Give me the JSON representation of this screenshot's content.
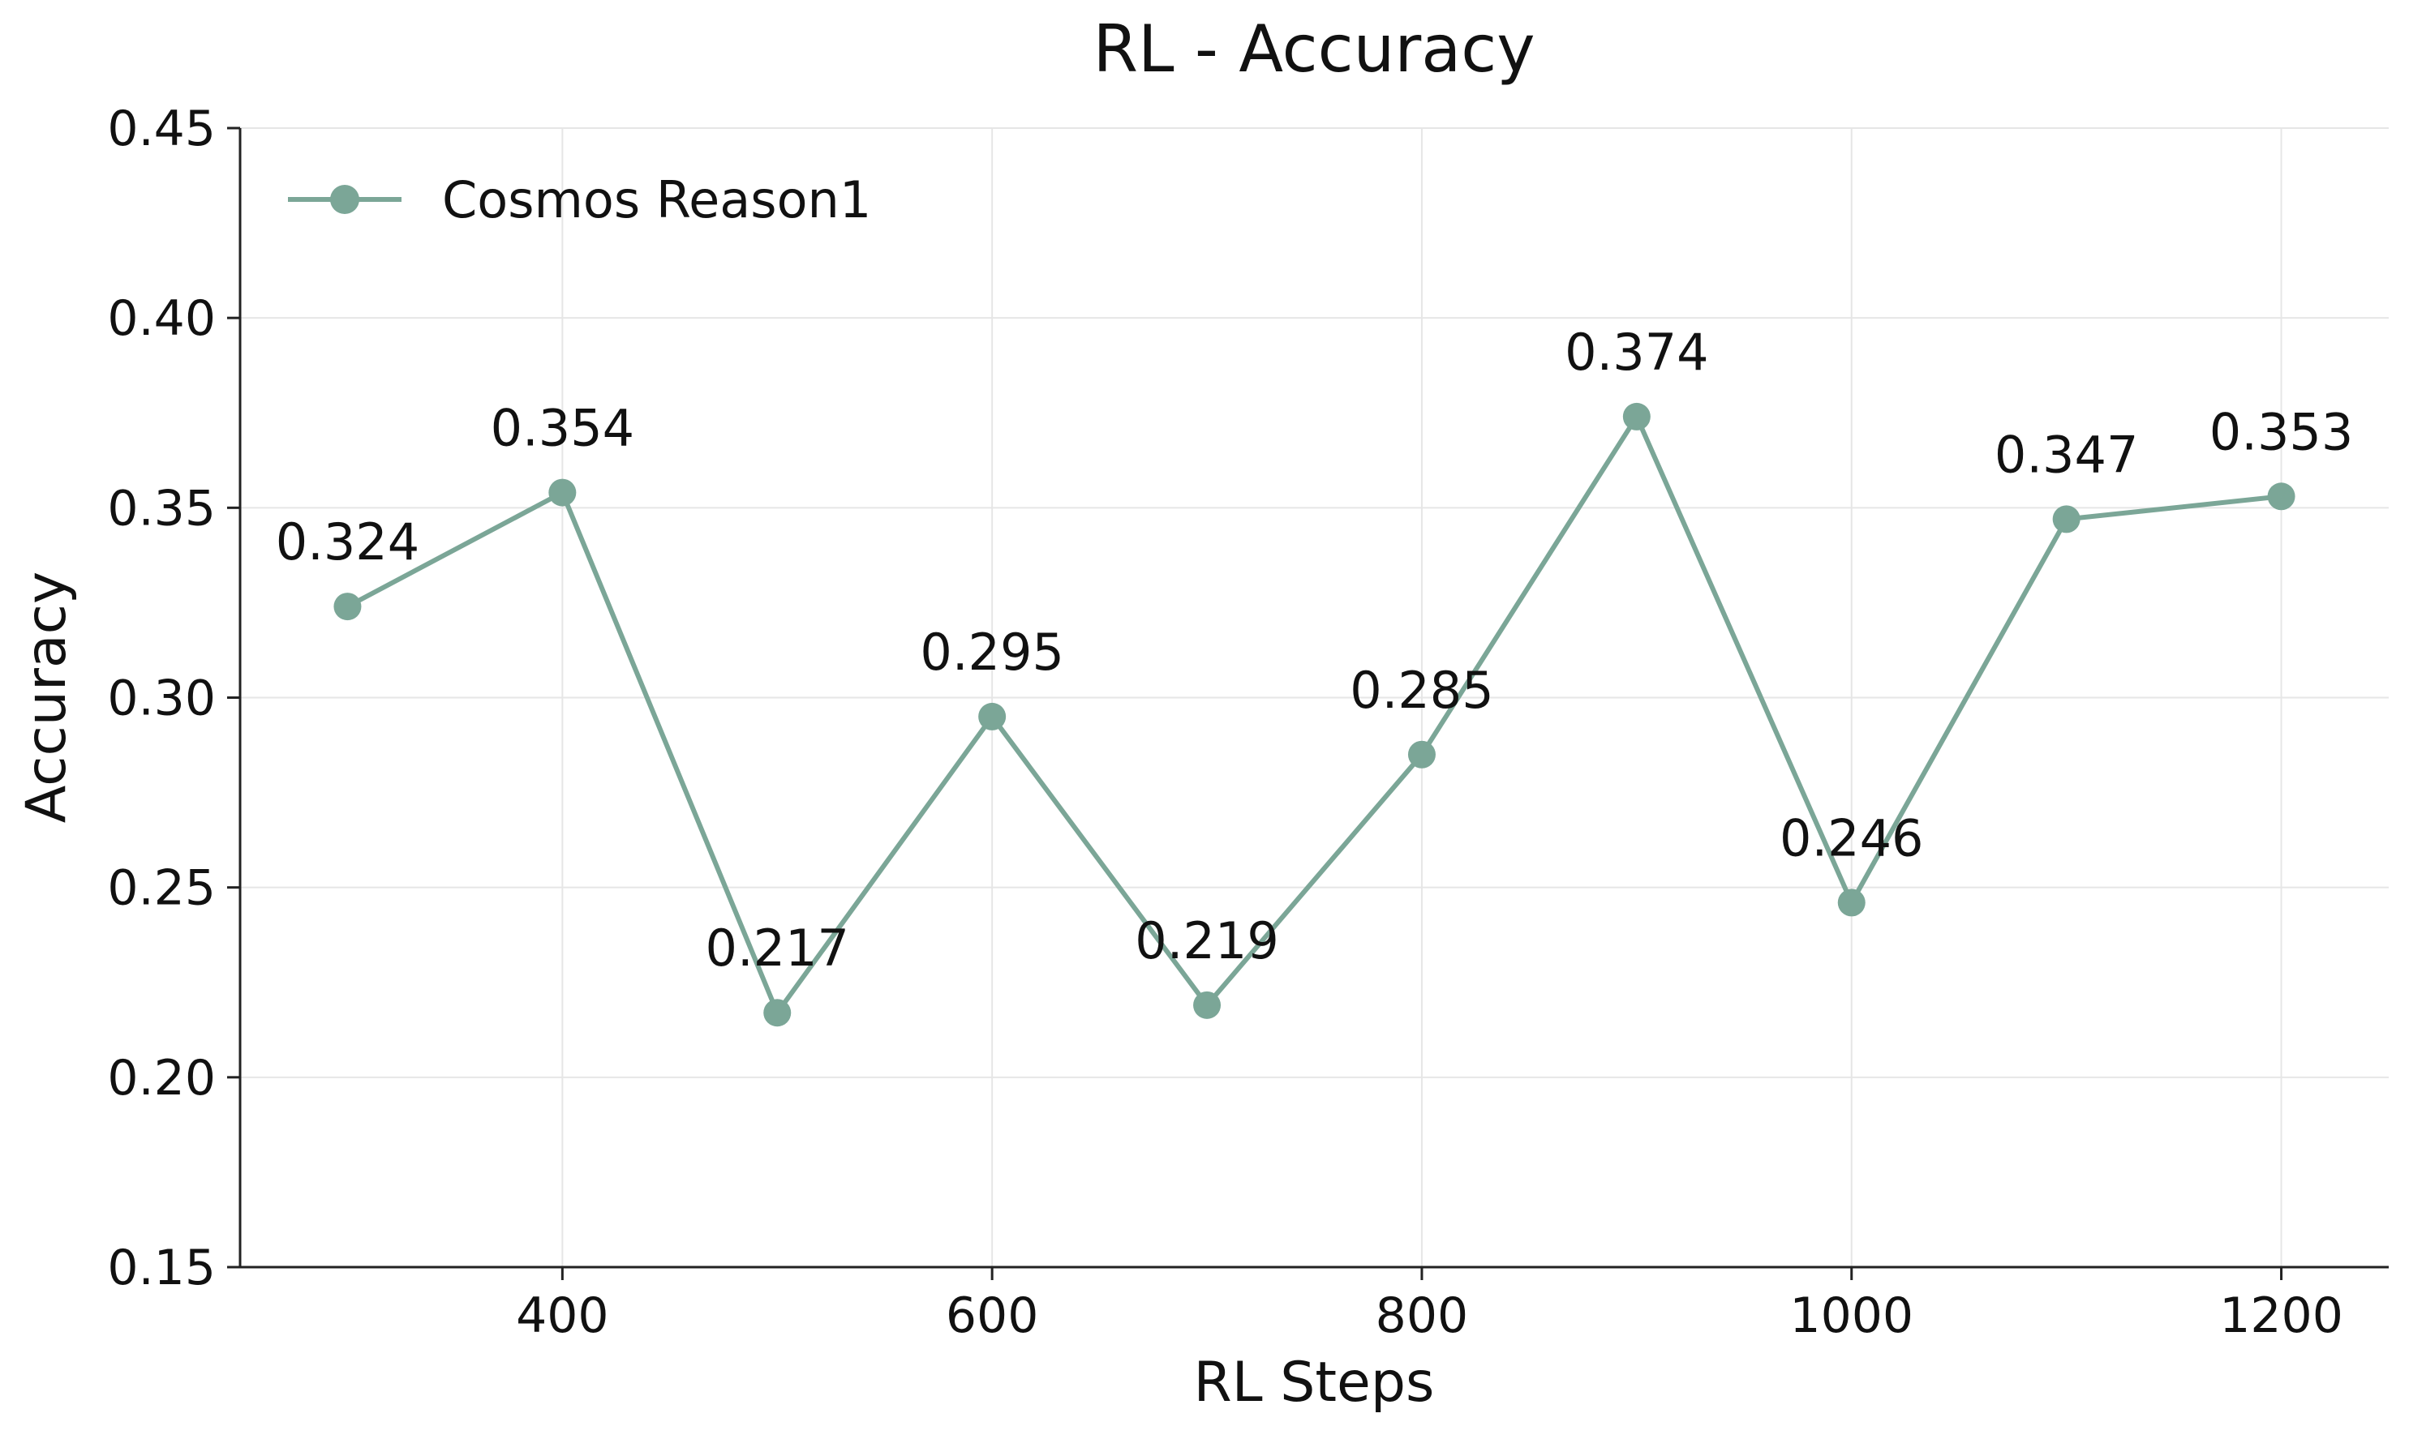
{
  "chart_data": {
    "type": "line",
    "title": "RL - Accuracy",
    "xlabel": "RL Steps",
    "ylabel": "Accuracy",
    "x": [
      300,
      400,
      500,
      600,
      700,
      800,
      900,
      1000,
      1100,
      1200
    ],
    "x_ticks": [
      400,
      600,
      800,
      1000,
      1200
    ],
    "y_ticks": [
      0.15,
      0.2,
      0.25,
      0.3,
      0.35,
      0.4,
      0.45
    ],
    "y_tick_labels": [
      "0.15",
      "0.20",
      "0.25",
      "0.30",
      "0.35",
      "0.40",
      "0.45"
    ],
    "xlim": [
      250,
      1250
    ],
    "ylim": [
      0.15,
      0.45
    ],
    "grid": true,
    "legend_position": "top-left",
    "series": [
      {
        "name": "Cosmos Reason1",
        "color": "#7ba697",
        "values": [
          0.324,
          0.354,
          0.217,
          0.295,
          0.219,
          0.285,
          0.374,
          0.246,
          0.347,
          0.353
        ],
        "data_labels": [
          "0.324",
          "0.354",
          "0.217",
          "0.295",
          "0.219",
          "0.285",
          "0.374",
          "0.246",
          "0.347",
          "0.353"
        ]
      }
    ]
  }
}
